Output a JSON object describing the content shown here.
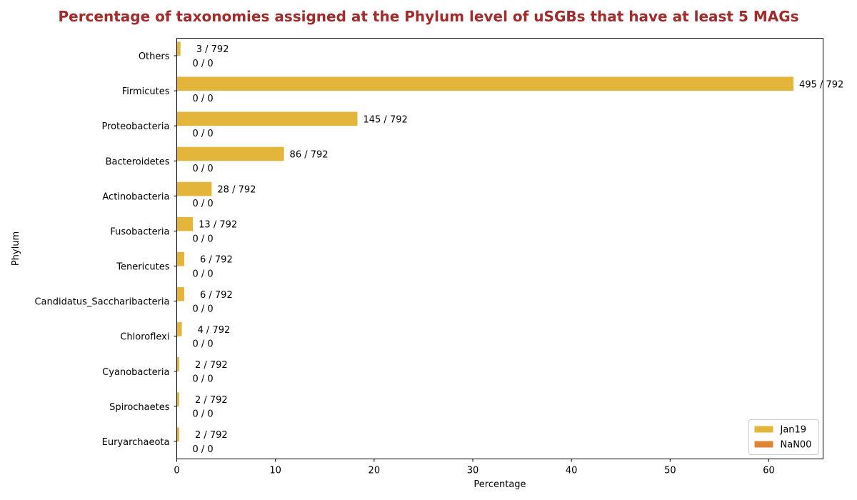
{
  "chart_data": {
    "type": "bar",
    "orientation": "horizontal",
    "title": "Percentage of taxonomies assigned at the Phylum level of uSGBs that have at least 5 MAGs",
    "xlabel": "Percentage",
    "ylabel": "Phylum",
    "xlim": [
      0,
      65.5
    ],
    "xticks": [
      "0",
      "10",
      "20",
      "30",
      "40",
      "50",
      "60"
    ],
    "grid": false,
    "legend_position": "bottom-right",
    "categories": [
      "Others",
      "Firmicutes",
      "Proteobacteria",
      "Bacteroidetes",
      "Actinobacteria",
      "Fusobacteria",
      "Tenericutes",
      "Candidatus_Saccharibacteria",
      "Chloroflexi",
      "Cyanobacteria",
      "Spirochaetes",
      "Euryarchaeota"
    ],
    "series": [
      {
        "name": "Jan19",
        "color": "#e3b53b",
        "values": [
          0.38,
          62.5,
          18.31,
          10.86,
          3.54,
          1.64,
          0.76,
          0.76,
          0.51,
          0.25,
          0.25,
          0.25
        ],
        "labels": [
          "3 / 792",
          "495 / 792",
          "145 / 792",
          "86 / 792",
          "28 / 792",
          "13 / 792",
          "6 / 792",
          "6 / 792",
          "4 / 792",
          "2 / 792",
          "2 / 792",
          "2 / 792"
        ]
      },
      {
        "name": "NaN00",
        "color": "#de8534",
        "values": [
          0,
          0,
          0,
          0,
          0,
          0,
          0,
          0,
          0,
          0,
          0,
          0
        ],
        "labels": [
          "0 / 0",
          "0 / 0",
          "0 / 0",
          "0 / 0",
          "0 / 0",
          "0 / 0",
          "0 / 0",
          "0 / 0",
          "0 / 0",
          "0 / 0",
          "0 / 0",
          "0 / 0"
        ]
      }
    ]
  }
}
